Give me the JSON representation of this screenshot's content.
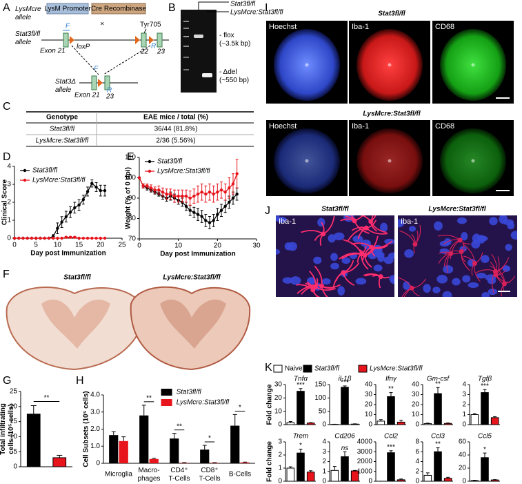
{
  "panel_labels": [
    "A",
    "B",
    "I",
    "C",
    "D",
    "E",
    "F",
    "G",
    "H",
    "J",
    "K"
  ],
  "diagram": {
    "lysmcre_allele": "LysMcre\nallele",
    "promoter": "LysM Promoter",
    "cre": "Cre Recombinase",
    "floxed_allele": "Stat3fl/fl\nallele",
    "primer_f": "F",
    "primer_r": "R",
    "loxp": "loxP",
    "tyr": "Tyr705",
    "exon21": "Exon 21",
    "exon22": "22",
    "exon23": "23",
    "deleted_allele": "Stat3Δ\nallele"
  },
  "gel": {
    "lanes": [
      "Stat3fl/fl",
      "LysMcre:Stat3fl/fl"
    ],
    "bands": [
      "- flox\n(~3.5k bp)",
      "- Δdel\n(~550 bp)"
    ]
  },
  "table": {
    "header": [
      "Genotype",
      "EAE mice / total (%)"
    ],
    "rows": [
      [
        "Stat3fl/fl",
        "36/44 (81.8%)"
      ],
      [
        "LysMcre:Stat3fl/fl",
        "2/36 (5.56%)"
      ]
    ]
  },
  "histology": {
    "titles": [
      "Stat3fl/fl",
      "LysMcre:Stat3fl/fl"
    ]
  },
  "microscopy": {
    "titles": [
      "Stat3fl/fl",
      "LysMcre:Stat3fl/fl"
    ],
    "channels": [
      "Hoechst",
      "Iba-1",
      "CD68"
    ]
  },
  "magnified": {
    "titles": [
      "Stat3fl/fl",
      "LysMcre:Stat3fl/fl"
    ],
    "stain": "Iba-1"
  },
  "k_legend": [
    {
      "name": "Naive",
      "color": "#ffffff"
    },
    {
      "name": "Stat3fl/fl",
      "color": "#000000"
    },
    {
      "name": "LysMcre:Stat3fl/fl",
      "color": "#e8141c"
    }
  ],
  "chart_data": [
    {
      "type": "line",
      "xlabel": "Day post Immunization",
      "ylabel": "Clinical Score",
      "x": [
        0,
        1,
        2,
        3,
        4,
        5,
        6,
        7,
        8,
        9,
        10,
        11,
        12,
        13,
        14,
        15,
        16,
        17,
        18,
        19,
        20,
        21
      ],
      "xlim": [
        0,
        25
      ],
      "xticks": [
        0,
        5,
        10,
        15,
        20,
        25
      ],
      "ylim": [
        0,
        4
      ],
      "yticks": [
        0,
        1,
        2,
        3,
        4
      ],
      "legend": "top-left",
      "series": [
        {
          "name": "Stat3fl/fl",
          "color": "#000000",
          "values": [
            0,
            0,
            0,
            0,
            0,
            0,
            0,
            0,
            0,
            0.1,
            0.55,
            0.9,
            1.2,
            1.45,
            1.7,
            1.85,
            2.15,
            2.6,
            3.05,
            2.85,
            2.65,
            2.65
          ],
          "errors": [
            0,
            0,
            0,
            0,
            0,
            0,
            0,
            0,
            0,
            0.1,
            0.3,
            0.3,
            0.3,
            0.3,
            0.3,
            0.3,
            0.25,
            0.25,
            0.2,
            0.25,
            0.3,
            0.3
          ]
        },
        {
          "name": "LysMcre:Stat3fl/fl",
          "color": "#e8141c",
          "values": [
            0,
            0,
            0,
            0,
            0,
            0,
            0,
            0,
            0,
            0,
            0,
            0,
            0.05,
            0.05,
            0.05,
            0,
            0,
            0,
            0,
            0,
            0,
            0
          ],
          "errors": [
            0,
            0,
            0,
            0,
            0,
            0,
            0,
            0,
            0,
            0,
            0,
            0,
            0.05,
            0.05,
            0.05,
            0,
            0,
            0,
            0,
            0,
            0,
            0
          ]
        }
      ]
    },
    {
      "type": "line",
      "xlabel": "Day post Immunization",
      "ylabel": "Weight (% of 0 dpi)",
      "x": [
        0,
        1,
        2,
        3,
        4,
        5,
        6,
        7,
        8,
        9,
        10,
        11,
        12,
        13,
        14,
        15,
        16,
        17,
        18,
        19,
        20,
        21,
        22,
        23,
        24,
        25
      ],
      "xlim": [
        0,
        30
      ],
      "xticks": [
        0,
        10,
        20,
        30
      ],
      "ylim": [
        70,
        110
      ],
      "yticks": [
        70,
        80,
        90,
        100,
        110
      ],
      "legend": "top-left",
      "series": [
        {
          "name": "Stat3fl/fl",
          "color": "#000000",
          "values": [
            100,
            96,
            95,
            94,
            93,
            92,
            91,
            90,
            91,
            90,
            89,
            88,
            86,
            84,
            83,
            82,
            81,
            79,
            78,
            79,
            82,
            84,
            86,
            88,
            90,
            92
          ],
          "errors": [
            0,
            1,
            1,
            1,
            1,
            1,
            1.5,
            1.5,
            2,
            2,
            2,
            2,
            2,
            2.5,
            2.5,
            3,
            3,
            3,
            3,
            3,
            3,
            3,
            3,
            3,
            3,
            3
          ]
        },
        {
          "name": "LysMcre:Stat3fl/fl",
          "color": "#e8141c",
          "values": [
            100,
            96,
            96,
            95,
            94,
            94,
            93,
            92,
            92,
            91,
            91,
            91,
            91,
            90,
            91,
            92,
            93,
            92,
            93,
            92,
            93,
            94,
            93,
            95,
            97,
            102
          ],
          "errors": [
            0,
            1,
            1,
            1.5,
            1.5,
            2,
            2,
            2.5,
            2.5,
            3,
            3,
            3,
            3,
            3.5,
            3.5,
            4,
            4,
            4,
            4,
            4,
            4,
            4,
            4,
            5,
            5,
            7
          ]
        }
      ]
    },
    {
      "type": "bar",
      "ylabel": "Total infiltrating\ncells (10⁵ cells)",
      "categories": [
        null,
        null
      ],
      "values": [
        17.5,
        3
      ],
      "errors": [
        2.8,
        0.8
      ],
      "colors": [
        "#000000",
        "#e8141c"
      ],
      "ylim": [
        0,
        25
      ],
      "yticks": [
        0,
        5,
        10,
        15,
        20,
        25
      ],
      "significance": "**"
    },
    {
      "type": "bar",
      "ylabel": "Cell Subsets (10⁵ cells)",
      "categories": [
        "Microglia",
        "Macro-\nphages",
        "CD4⁺\nT-Cells",
        "CD8⁺\nT-Cells",
        "B-Cells"
      ],
      "series": [
        {
          "name": "Stat3fl/fl",
          "color": "#000000",
          "values": [
            1.65,
            2.8,
            1.45,
            0.8,
            2.2
          ],
          "errors": [
            0.2,
            0.6,
            0.3,
            0.25,
            0.65
          ]
        },
        {
          "name": "LysMcre:Stat3fl/fl",
          "color": "#e8141c",
          "values": [
            1.3,
            0.25,
            0.03,
            0.03,
            0.05
          ],
          "errors": [
            0.25,
            0.05,
            0.01,
            0.01,
            0.02
          ]
        }
      ],
      "ylim": [
        0,
        4
      ],
      "yticks": [
        0,
        {
          "value": 1,
          "label": "1.0"
        },
        {
          "value": 2,
          "label": "2.0"
        },
        {
          "value": 3,
          "label": "3.0"
        },
        {
          "value": 4,
          "label": "4.0"
        }
      ],
      "legend": "top-right",
      "significance": [
        null,
        "**",
        "**",
        "*",
        "*"
      ]
    },
    {
      "type": "bar",
      "title": "Tnfα",
      "ylabel": "Fold change",
      "categories": [
        null,
        null,
        null
      ],
      "values": [
        1.5,
        25,
        1.2
      ],
      "errors": [
        0.8,
        2,
        0.3
      ],
      "colors": [
        "#ffffff",
        "#000000",
        "#e8141c"
      ],
      "ylim": [
        0,
        30
      ],
      "yticks": [
        0,
        10,
        20,
        30
      ],
      "significance": "***"
    },
    {
      "type": "bar",
      "title": "il-1β",
      "categories": [
        null,
        null,
        null
      ],
      "values": [
        1,
        140,
        2
      ],
      "errors": [
        0.5,
        5,
        1
      ],
      "colors": [
        "#ffffff",
        "#000000",
        "#e8141c"
      ],
      "ylim": [
        0,
        150
      ],
      "yticks": [
        0,
        50,
        100,
        150
      ],
      "significance": "***"
    },
    {
      "type": "bar",
      "title": "Ifnγ",
      "categories": [
        null,
        null,
        null
      ],
      "values": [
        3.5,
        28,
        2.5
      ],
      "errors": [
        1.5,
        4,
        2
      ],
      "colors": [
        "#ffffff",
        "#000000",
        "#e8141c"
      ],
      "ylim": [
        0,
        40
      ],
      "yticks": [
        0,
        10,
        20,
        30,
        40
      ],
      "significance": "**"
    },
    {
      "type": "bar",
      "title": "Gm-csf",
      "categories": [
        null,
        null,
        null
      ],
      "values": [
        1,
        31,
        1.2
      ],
      "errors": [
        0.5,
        6,
        0.5
      ],
      "colors": [
        "#ffffff",
        "#000000",
        "#e8141c"
      ],
      "ylim": [
        0,
        40
      ],
      "yticks": [
        0,
        10,
        20,
        30,
        40
      ],
      "significance": "**"
    },
    {
      "type": "bar",
      "title": "Tgfβ",
      "categories": [
        null,
        null,
        null
      ],
      "values": [
        1,
        3.2,
        0.7
      ],
      "errors": [
        0.1,
        0.3,
        0.1
      ],
      "colors": [
        "#ffffff",
        "#000000",
        "#e8141c"
      ],
      "ylim": [
        0,
        4
      ],
      "yticks": [
        0,
        1,
        2,
        3,
        4
      ],
      "significance": "***"
    },
    {
      "type": "bar",
      "title": "Trem",
      "ylabel": "Fold change",
      "categories": [
        null,
        null,
        null
      ],
      "values": [
        1,
        2.15,
        0.7
      ],
      "errors": [
        0.1,
        0.3,
        0.1
      ],
      "colors": [
        "#ffffff",
        "#000000",
        "#e8141c"
      ],
      "ylim": [
        0,
        3
      ],
      "yticks": [
        0,
        1,
        2,
        3
      ],
      "significance": "*"
    },
    {
      "type": "bar",
      "title": "Cd206",
      "categories": [
        null,
        null,
        null
      ],
      "values": [
        1.1,
        2.5,
        1.05
      ],
      "errors": [
        0.4,
        0.5,
        0.05
      ],
      "colors": [
        "#ffffff",
        "#000000",
        "#e8141c"
      ],
      "ylim": [
        0,
        4
      ],
      "yticks": [
        0,
        1,
        2,
        3,
        4
      ],
      "significance": "ns"
    },
    {
      "type": "bar",
      "title": "Ccl2",
      "categories": [
        null,
        null,
        null
      ],
      "values": [
        2,
        2900,
        150
      ],
      "errors": [
        1,
        200,
        80
      ],
      "colors": [
        "#ffffff",
        "#000000",
        "#e8141c"
      ],
      "ylim": [
        0,
        4000
      ],
      "yticks": [
        0,
        1000,
        2000,
        3000,
        4000
      ],
      "significance": "***"
    },
    {
      "type": "bar",
      "title": "Ccl3",
      "categories": [
        null,
        null,
        null
      ],
      "values": [
        1.2,
        6,
        0.6
      ],
      "errors": [
        0.5,
        0.8,
        0.2
      ],
      "colors": [
        "#ffffff",
        "#000000",
        "#e8141c"
      ],
      "ylim": [
        0,
        8
      ],
      "yticks": [
        0,
        2,
        4,
        6,
        8
      ],
      "significance": "**"
    },
    {
      "type": "bar",
      "title": "Ccl5",
      "categories": [
        null,
        null,
        null
      ],
      "values": [
        1,
        36,
        2
      ],
      "errors": [
        0.5,
        7,
        0.5
      ],
      "colors": [
        "#ffffff",
        "#000000",
        "#e8141c"
      ],
      "ylim": [
        0,
        60
      ],
      "yticks": [
        0,
        20,
        40,
        60
      ],
      "significance": "*"
    }
  ]
}
